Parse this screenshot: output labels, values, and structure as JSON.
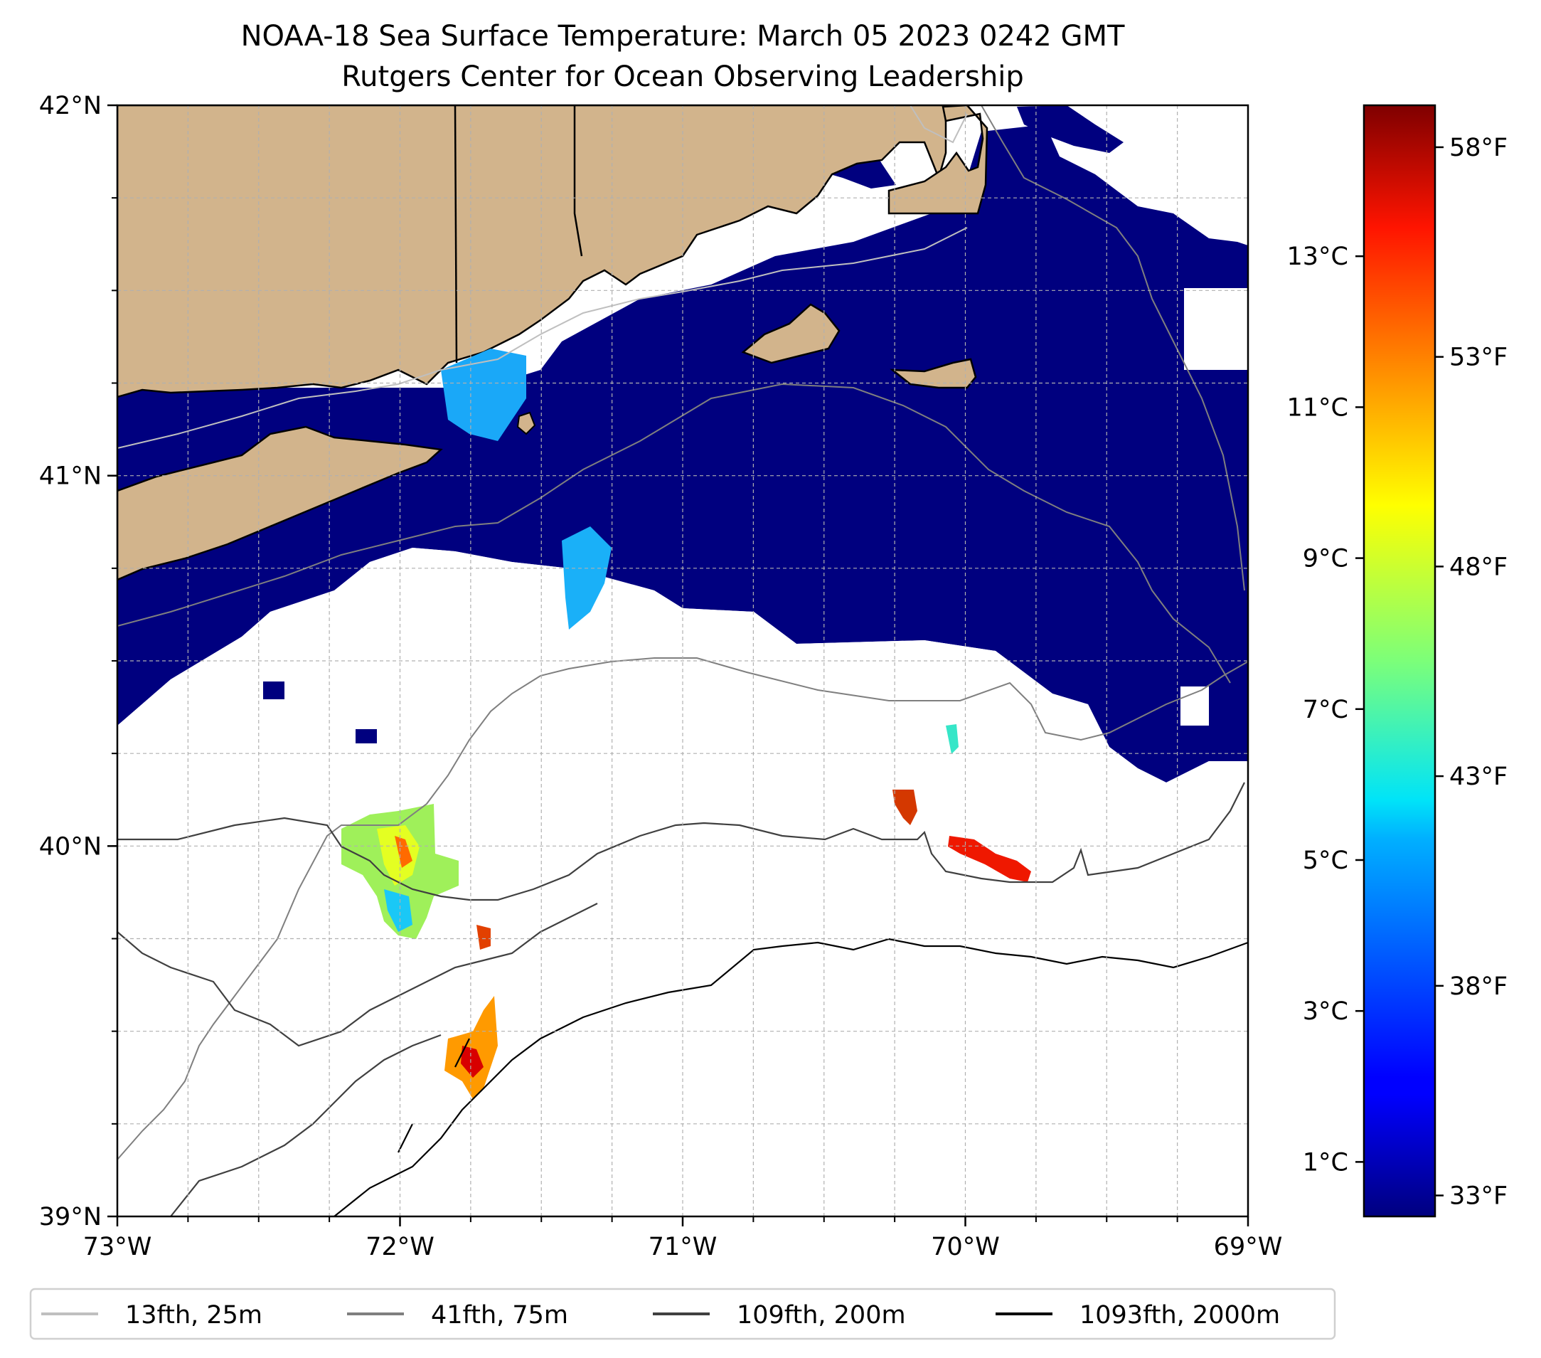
{
  "title": {
    "line1": "NOAA-18 Sea Surface Temperature: March 05 2023 0242 GMT",
    "line2": "Rutgers Center for Ocean Observing Leadership"
  },
  "map": {
    "lon_range": [
      -73,
      -69
    ],
    "lat_range": [
      39,
      42
    ],
    "x_ticks": [
      {
        "lon": -73,
        "label": "73°W"
      },
      {
        "lon": -72,
        "label": "72°W"
      },
      {
        "lon": -71,
        "label": "71°W"
      },
      {
        "lon": -70,
        "label": "70°W"
      },
      {
        "lon": -69,
        "label": "69°W"
      }
    ],
    "y_ticks": [
      {
        "lat": 42,
        "label": "42°N"
      },
      {
        "lat": 41,
        "label": "41°N"
      },
      {
        "lat": 40,
        "label": "40°N"
      },
      {
        "lat": 39,
        "label": "39°N"
      }
    ],
    "minor_step_deg": 0.25,
    "grid": true,
    "land_color": "#d2b48c",
    "water_sst_color": "#00007f",
    "cloud_color": "#ffffff"
  },
  "colorbar": {
    "colormap": "jet",
    "range_f": [
      32.5,
      59
    ],
    "celsius_ticks": [
      {
        "c": 1,
        "label": "1°C"
      },
      {
        "c": 3,
        "label": "3°C"
      },
      {
        "c": 5,
        "label": "5°C"
      },
      {
        "c": 7,
        "label": "7°C"
      },
      {
        "c": 9,
        "label": "9°C"
      },
      {
        "c": 11,
        "label": "11°C"
      },
      {
        "c": 13,
        "label": "13°C"
      }
    ],
    "fahrenheit_ticks": [
      {
        "f": 33,
        "label": "33°F"
      },
      {
        "f": 38,
        "label": "38°F"
      },
      {
        "f": 43,
        "label": "43°F"
      },
      {
        "f": 48,
        "label": "48°F"
      },
      {
        "f": 53,
        "label": "53°F"
      },
      {
        "f": 58,
        "label": "58°F"
      }
    ]
  },
  "legend": {
    "placement": "bottom",
    "entries": [
      {
        "label": "13fth, 25m",
        "color": "#bfbfbf"
      },
      {
        "label": "41fth, 75m",
        "color": "#7f7f7f"
      },
      {
        "label": "109fth, 200m",
        "color": "#404040"
      },
      {
        "label": "1093fth, 2000m",
        "color": "#000000"
      }
    ]
  }
}
